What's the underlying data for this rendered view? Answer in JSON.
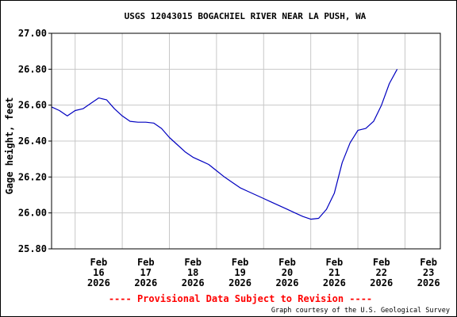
{
  "chart_data": {
    "type": "line",
    "title": "USGS 12043015 BOGACHIEL RIVER NEAR LA PUSH, WA",
    "ylabel": "Gage height, feet",
    "xlabel": "",
    "ylim": [
      25.8,
      27.0
    ],
    "y_ticks": [
      "27.00",
      "26.80",
      "26.60",
      "26.40",
      "26.20",
      "26.00",
      "25.80"
    ],
    "xlim": [
      "2026-02-15T12:00",
      "2026-02-23T18:00"
    ],
    "x_ticks": [
      {
        "month": "Feb",
        "day": "16",
        "year": "2026",
        "date": "2026-02-16"
      },
      {
        "month": "Feb",
        "day": "17",
        "year": "2026",
        "date": "2026-02-17"
      },
      {
        "month": "Feb",
        "day": "18",
        "year": "2026",
        "date": "2026-02-18"
      },
      {
        "month": "Feb",
        "day": "19",
        "year": "2026",
        "date": "2026-02-19"
      },
      {
        "month": "Feb",
        "day": "20",
        "year": "2026",
        "date": "2026-02-20"
      },
      {
        "month": "Feb",
        "day": "21",
        "year": "2026",
        "date": "2026-02-21"
      },
      {
        "month": "Feb",
        "day": "22",
        "year": "2026",
        "date": "2026-02-22"
      },
      {
        "month": "Feb",
        "day": "23",
        "year": "2026",
        "date": "2026-02-23"
      }
    ],
    "grid": true,
    "series": [
      {
        "color": "#0000c0",
        "points": [
          [
            "2026-02-15T12:00",
            26.59
          ],
          [
            "2026-02-15T16:00",
            26.57
          ],
          [
            "2026-02-15T20:00",
            26.54
          ],
          [
            "2026-02-16T00:00",
            26.57
          ],
          [
            "2026-02-16T04:00",
            26.58
          ],
          [
            "2026-02-16T08:00",
            26.61
          ],
          [
            "2026-02-16T12:00",
            26.64
          ],
          [
            "2026-02-16T16:00",
            26.63
          ],
          [
            "2026-02-16T20:00",
            26.58
          ],
          [
            "2026-02-17T00:00",
            26.54
          ],
          [
            "2026-02-17T04:00",
            26.51
          ],
          [
            "2026-02-17T08:00",
            26.505
          ],
          [
            "2026-02-17T12:00",
            26.505
          ],
          [
            "2026-02-17T16:00",
            26.5
          ],
          [
            "2026-02-17T20:00",
            26.47
          ],
          [
            "2026-02-18T00:00",
            26.42
          ],
          [
            "2026-02-18T04:00",
            26.38
          ],
          [
            "2026-02-18T08:00",
            26.34
          ],
          [
            "2026-02-18T12:00",
            26.31
          ],
          [
            "2026-02-18T16:00",
            26.29
          ],
          [
            "2026-02-18T20:00",
            26.27
          ],
          [
            "2026-02-19T00:00",
            26.235
          ],
          [
            "2026-02-19T04:00",
            26.2
          ],
          [
            "2026-02-19T08:00",
            26.17
          ],
          [
            "2026-02-19T12:00",
            26.14
          ],
          [
            "2026-02-19T16:00",
            26.12
          ],
          [
            "2026-02-19T20:00",
            26.1
          ],
          [
            "2026-02-20T00:00",
            26.08
          ],
          [
            "2026-02-20T04:00",
            26.06
          ],
          [
            "2026-02-20T08:00",
            26.04
          ],
          [
            "2026-02-20T12:00",
            26.02
          ],
          [
            "2026-02-20T16:00",
            26.0
          ],
          [
            "2026-02-20T20:00",
            25.98
          ],
          [
            "2026-02-21T00:00",
            25.965
          ],
          [
            "2026-02-21T04:00",
            25.97
          ],
          [
            "2026-02-21T08:00",
            26.02
          ],
          [
            "2026-02-21T12:00",
            26.11
          ],
          [
            "2026-02-21T16:00",
            26.28
          ],
          [
            "2026-02-21T20:00",
            26.39
          ],
          [
            "2026-02-22T00:00",
            26.46
          ],
          [
            "2026-02-22T04:00",
            26.47
          ],
          [
            "2026-02-22T08:00",
            26.51
          ],
          [
            "2026-02-22T12:00",
            26.6
          ],
          [
            "2026-02-22T16:00",
            26.72
          ],
          [
            "2026-02-22T20:00",
            26.8
          ]
        ]
      }
    ]
  },
  "footer": {
    "provisional": "---- Provisional Data Subject to Revision ----",
    "provisional_color": "#ff0000",
    "credit": "Graph courtesy of the U.S. Geological Survey"
  }
}
